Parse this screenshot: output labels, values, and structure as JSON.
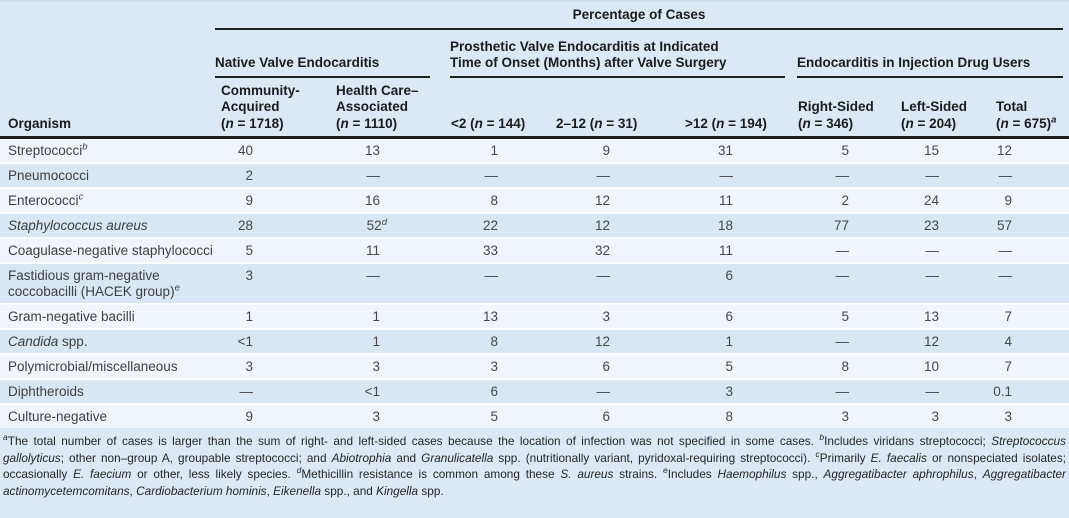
{
  "colors": {
    "page-bg": "#dce8f5",
    "row-light": "#eff5fb",
    "row-dark": "#d9e6f3",
    "rule": "#1e1e1c",
    "header-text": "#1c1c1c",
    "body-text": "#474747",
    "footnote-text": "#262626",
    "separator": "#ffffff"
  },
  "table": {
    "spanner": "Percentage of Cases",
    "organism_header": "Organism",
    "groups": [
      "Native Valve Endocarditis",
      "Prosthetic Valve Endocarditis at Indicated\nTime of Onset (Months) after Valve Surgery",
      "Endocarditis in Injection Drug Users"
    ],
    "columns": [
      [
        {
          "t": "Community-\nAcquired\n("
        },
        {
          "t": "n",
          "i": true
        },
        {
          "t": " = 1718)"
        }
      ],
      [
        {
          "t": "Health Care–\nAssociated\n("
        },
        {
          "t": "n",
          "i": true
        },
        {
          "t": " = 1110)"
        }
      ],
      [
        {
          "t": "<2 ("
        },
        {
          "t": "n",
          "i": true
        },
        {
          "t": " = 144)"
        }
      ],
      [
        {
          "t": "2–12 ("
        },
        {
          "t": "n",
          "i": true
        },
        {
          "t": " = 31)"
        }
      ],
      [
        {
          "t": ">12 ("
        },
        {
          "t": "n",
          "i": true
        },
        {
          "t": " = 194)"
        }
      ],
      [
        {
          "t": "Right-Sided\n("
        },
        {
          "t": "n",
          "i": true
        },
        {
          "t": " = 346)"
        }
      ],
      [
        {
          "t": "Left-Sided\n("
        },
        {
          "t": "n",
          "i": true
        },
        {
          "t": " = 204)"
        }
      ],
      [
        {
          "t": "Total\n("
        },
        {
          "t": "n",
          "i": true
        },
        {
          "t": " = 675)"
        },
        {
          "t": "a",
          "s": true,
          "i": true
        }
      ]
    ],
    "rows": [
      {
        "organism": [
          {
            "t": "Streptococci"
          },
          {
            "t": "b",
            "s": true,
            "i": true
          }
        ],
        "values": [
          "40",
          "13",
          "1",
          "9",
          "31",
          "5",
          "15",
          "12"
        ]
      },
      {
        "organism": [
          {
            "t": "Pneumococci"
          }
        ],
        "values": [
          "2",
          "—",
          "—",
          "—",
          "—",
          "—",
          "—",
          "—"
        ]
      },
      {
        "organism": [
          {
            "t": "Enterococci"
          },
          {
            "t": "c",
            "s": true,
            "i": true
          }
        ],
        "values": [
          "9",
          "16",
          "8",
          "12",
          "11",
          "2",
          "24",
          "9"
        ]
      },
      {
        "organism": [
          {
            "t": "Staphylococcus aureus",
            "i": true
          }
        ],
        "values": [
          "28",
          [
            {
              "t": "52"
            },
            {
              "t": "d",
              "s": true,
              "i": true
            }
          ],
          "22",
          "12",
          "18",
          "77",
          "23",
          "57"
        ]
      },
      {
        "organism": [
          {
            "t": "Coagulase-negative staphylococci"
          }
        ],
        "values": [
          "5",
          "11",
          "33",
          "32",
          "11",
          "—",
          "—",
          "—"
        ]
      },
      {
        "organism": [
          {
            "t": "Fastidious gram-negative coccobacilli (HACEK group)"
          },
          {
            "t": "e",
            "s": true,
            "i": true
          }
        ],
        "values": [
          "3",
          "—",
          "—",
          "—",
          "6",
          "—",
          "—",
          "—"
        ]
      },
      {
        "organism": [
          {
            "t": "Gram-negative bacilli"
          }
        ],
        "values": [
          "1",
          "1",
          "13",
          "3",
          "6",
          "5",
          "13",
          "7"
        ]
      },
      {
        "organism": [
          {
            "t": "Candida",
            "i": true
          },
          {
            "t": " spp."
          }
        ],
        "values": [
          "<1",
          "1",
          "8",
          "12",
          "1",
          "—",
          "12",
          "4"
        ]
      },
      {
        "organism": [
          {
            "t": "Polymicrobial/miscellaneous"
          }
        ],
        "values": [
          "3",
          "3",
          "3",
          "6",
          "5",
          "8",
          "10",
          "7"
        ]
      },
      {
        "organism": [
          {
            "t": "Diphtheroids"
          }
        ],
        "values": [
          "—",
          "<1",
          "6",
          "—",
          "3",
          "—",
          "—",
          "0.1"
        ]
      },
      {
        "organism": [
          {
            "t": "Culture-negative"
          }
        ],
        "values": [
          "9",
          "3",
          "5",
          "6",
          "8",
          "3",
          "3",
          "3"
        ]
      }
    ],
    "footnote": [
      {
        "t": "a",
        "s": true,
        "i": true
      },
      {
        "t": "The total number of cases is larger than the sum of right- and left-sided cases because the location of infection was not specified in some cases.  "
      },
      {
        "t": "b",
        "s": true,
        "i": true
      },
      {
        "t": "Includes viridans streptococci; "
      },
      {
        "t": "Streptococcus gallolyticus",
        "i": true
      },
      {
        "t": "; other non–group A, groupable streptococci; and "
      },
      {
        "t": "Abiotrophia",
        "i": true
      },
      {
        "t": " and "
      },
      {
        "t": "Granulicatella",
        "i": true
      },
      {
        "t": " spp. (nutritionally variant, pyridoxal-requiring streptococci).  "
      },
      {
        "t": "c",
        "s": true,
        "i": true
      },
      {
        "t": "Primarily "
      },
      {
        "t": "E. faecalis",
        "i": true
      },
      {
        "t": " or nonspeciated isolates; occasionally "
      },
      {
        "t": "E. faecium",
        "i": true
      },
      {
        "t": " or other, less likely species.  "
      },
      {
        "t": "d",
        "s": true,
        "i": true
      },
      {
        "t": "Methicillin resistance is common among these "
      },
      {
        "t": "S. aureus",
        "i": true
      },
      {
        "t": " strains.  "
      },
      {
        "t": "e",
        "s": true,
        "i": true
      },
      {
        "t": "Includes "
      },
      {
        "t": "Haemophilus",
        "i": true
      },
      {
        "t": " spp., "
      },
      {
        "t": "Aggregatibacter aphrophilus",
        "i": true
      },
      {
        "t": ", "
      },
      {
        "t": "Aggregatibacter actinomycetemcomitans",
        "i": true
      },
      {
        "t": ", "
      },
      {
        "t": "Cardiobacterium hominis",
        "i": true
      },
      {
        "t": ", "
      },
      {
        "t": "Eikenella",
        "i": true
      },
      {
        "t": " spp., and "
      },
      {
        "t": "Kingella",
        "i": true
      },
      {
        "t": " spp."
      }
    ]
  }
}
